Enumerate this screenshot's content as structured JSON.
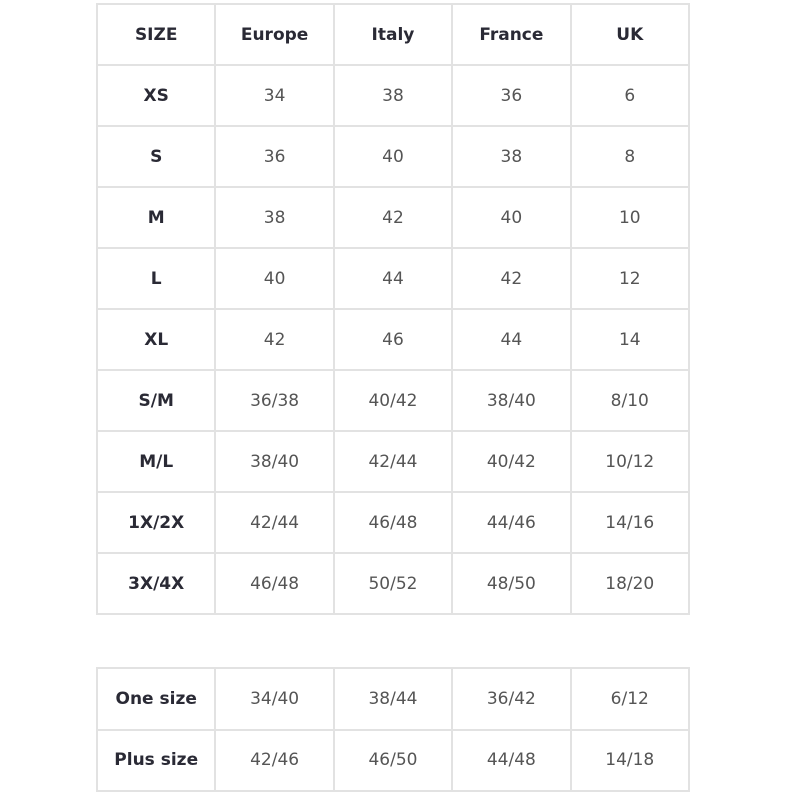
{
  "size_chart": {
    "headers": [
      "SIZE",
      "Europe",
      "Italy",
      "France",
      "UK"
    ],
    "rows": [
      [
        "XS",
        "34",
        "38",
        "36",
        "6"
      ],
      [
        "S",
        "36",
        "40",
        "38",
        "8"
      ],
      [
        "M",
        "38",
        "42",
        "40",
        "10"
      ],
      [
        "L",
        "40",
        "44",
        "42",
        "12"
      ],
      [
        "XL",
        "42",
        "46",
        "44",
        "14"
      ],
      [
        "S/M",
        "36/38",
        "40/42",
        "38/40",
        "8/10"
      ],
      [
        "M/L",
        "38/40",
        "42/44",
        "40/42",
        "10/12"
      ],
      [
        "1X/2X",
        "42/44",
        "46/48",
        "44/46",
        "14/16"
      ],
      [
        "3X/4X",
        "46/48",
        "50/52",
        "48/50",
        "18/20"
      ]
    ]
  },
  "special_sizes": {
    "rows": [
      [
        "One size",
        "34/40",
        "38/44",
        "36/42",
        "6/12"
      ],
      [
        "Plus size",
        "42/46",
        "46/50",
        "44/48",
        "14/18"
      ]
    ]
  },
  "colors": {
    "border": "#e2e2e2",
    "label_text": "#2a2a35",
    "value_text": "#555555"
  }
}
